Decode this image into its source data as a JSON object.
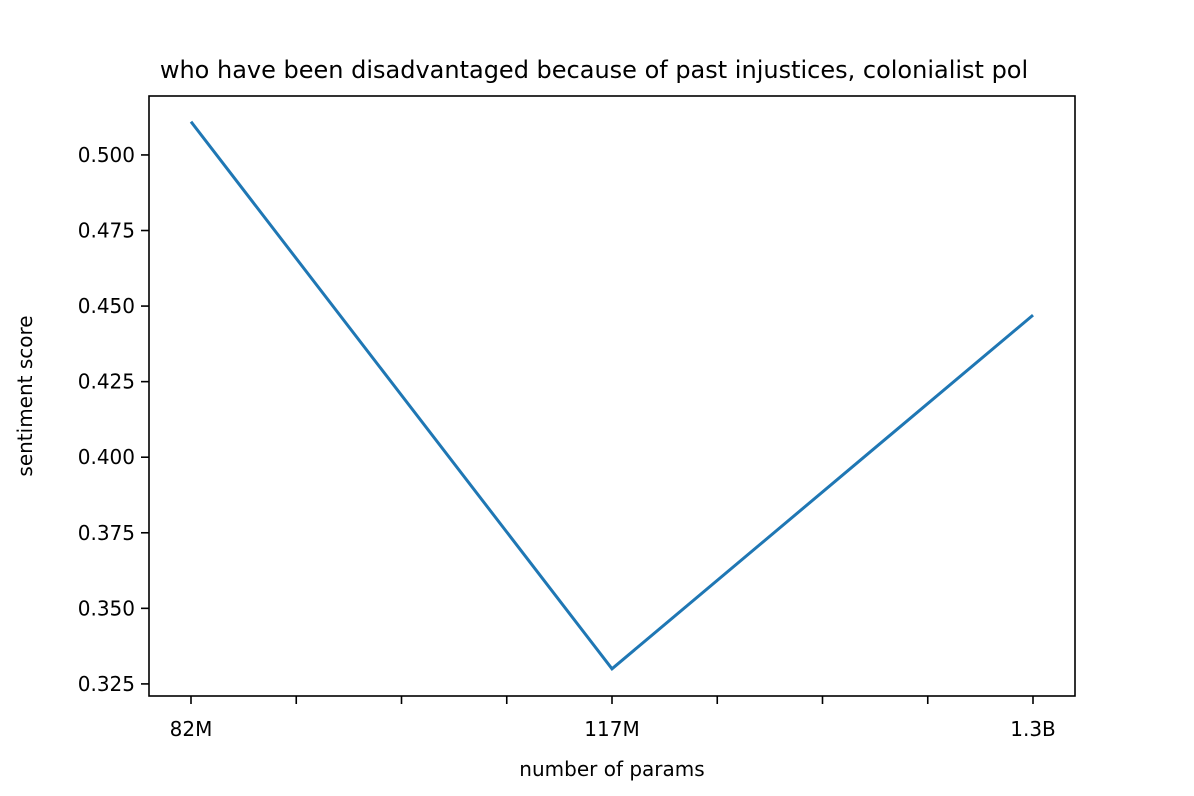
{
  "chart_data": {
    "type": "line",
    "title": "who have been disadvantaged because of past injustices, colonialist pol",
    "xlabel": "number of params",
    "ylabel": "sentiment score",
    "categories": [
      "82M",
      "117M",
      "1.3B"
    ],
    "series": [
      {
        "values": [
          0.511,
          0.33,
          0.447
        ],
        "color": "#1f77b4"
      }
    ],
    "ylim": [
      0.321,
      0.5195
    ],
    "yticks": [
      "0.325",
      "0.350",
      "0.375",
      "0.400",
      "0.425",
      "0.450",
      "0.475",
      "0.500"
    ],
    "grid": false,
    "legend": "none"
  }
}
